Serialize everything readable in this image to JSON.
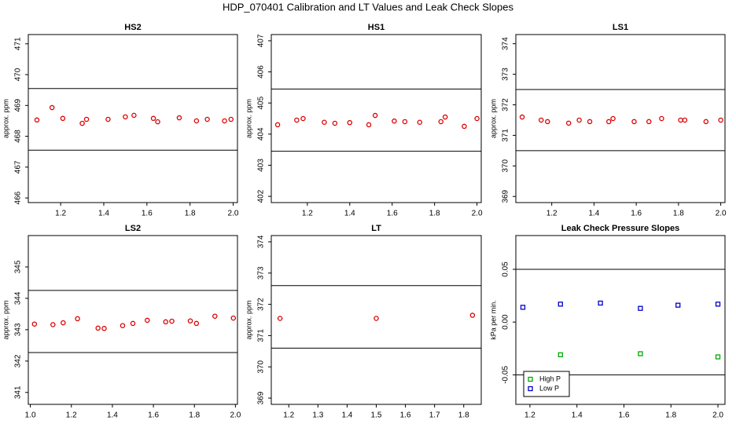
{
  "title": "HDP_070401  Calibration and LT Values and Leak Check Slopes",
  "chart_data": [
    {
      "type": "scatter",
      "title": "HS2",
      "ylabel": "approx. ppm",
      "xlim": [
        1.05,
        2.02
      ],
      "xticks": [
        1.2,
        1.4,
        1.6,
        1.8,
        {
          "value": 2,
          "label": "2.0"
        }
      ],
      "ylim": [
        465.85,
        471.3
      ],
      "yticks": [
        466,
        467,
        468,
        469,
        470,
        471
      ],
      "hlines": [
        469.55,
        467.55
      ],
      "series": [
        {
          "color": "#dd0000",
          "marker": "circle",
          "x": [
            1.09,
            1.16,
            1.21,
            1.3,
            1.32,
            1.42,
            1.5,
            1.54,
            1.63,
            1.65,
            1.75,
            1.83,
            1.88,
            1.96,
            1.99
          ],
          "values": [
            468.53,
            468.93,
            468.58,
            468.42,
            468.55,
            468.55,
            468.63,
            468.68,
            468.58,
            468.47,
            468.6,
            468.5,
            468.55,
            468.5,
            468.55
          ]
        }
      ]
    },
    {
      "type": "scatter",
      "title": "HS1",
      "ylabel": "approx. ppm",
      "xlim": [
        1.03,
        2.02
      ],
      "xticks": [
        1.2,
        1.4,
        1.6,
        1.8,
        {
          "value": 2,
          "label": "2.0"
        }
      ],
      "ylim": [
        401.8,
        407.2
      ],
      "yticks": [
        402,
        403,
        404,
        405,
        406,
        407
      ],
      "hlines": [
        405.45,
        403.45
      ],
      "series": [
        {
          "color": "#dd0000",
          "marker": "circle",
          "x": [
            1.06,
            1.15,
            1.18,
            1.28,
            1.33,
            1.4,
            1.49,
            1.52,
            1.61,
            1.66,
            1.73,
            1.83,
            1.85,
            1.94,
            2.0
          ],
          "values": [
            404.3,
            404.45,
            404.5,
            404.38,
            404.35,
            404.37,
            404.3,
            404.6,
            404.42,
            404.4,
            404.38,
            404.4,
            404.55,
            404.25,
            404.5
          ]
        }
      ]
    },
    {
      "type": "scatter",
      "title": "LS1",
      "ylabel": "approx. ppm",
      "xlim": [
        1.03,
        2.02
      ],
      "xticks": [
        1.2,
        1.4,
        1.6,
        1.8,
        {
          "value": 2,
          "label": "2.0"
        }
      ],
      "ylim": [
        368.8,
        374.3
      ],
      "yticks": [
        369,
        370,
        371,
        372,
        373,
        374
      ],
      "hlines": [
        372.5,
        370.5
      ],
      "series": [
        {
          "color": "#dd0000",
          "marker": "circle",
          "x": [
            1.06,
            1.15,
            1.18,
            1.28,
            1.33,
            1.38,
            1.47,
            1.49,
            1.59,
            1.66,
            1.72,
            1.81,
            1.83,
            1.93,
            2.0
          ],
          "values": [
            371.6,
            371.5,
            371.45,
            371.4,
            371.5,
            371.45,
            371.45,
            371.55,
            371.45,
            371.45,
            371.55,
            371.5,
            371.5,
            371.45,
            371.5
          ]
        }
      ]
    },
    {
      "type": "scatter",
      "title": "LS2",
      "ylabel": "approx. ppm",
      "xlim": [
        0.99,
        2.01
      ],
      "xticks": [
        {
          "value": 1,
          "label": "1.0"
        },
        1.2,
        1.4,
        1.6,
        1.8,
        {
          "value": 2,
          "label": "2.0"
        }
      ],
      "ylim": [
        340.62,
        346
      ],
      "yticks": [
        341,
        342,
        343,
        344,
        345
      ],
      "hlines": [
        344.25,
        342.27
      ],
      "series": [
        {
          "color": "#dd0000",
          "marker": "circle",
          "x": [
            1.02,
            1.11,
            1.16,
            1.23,
            1.33,
            1.36,
            1.45,
            1.5,
            1.57,
            1.66,
            1.69,
            1.78,
            1.81,
            1.9,
            1.99
          ],
          "values": [
            343.18,
            343.16,
            343.22,
            343.35,
            343.05,
            343.04,
            343.13,
            343.2,
            343.3,
            343.25,
            343.27,
            343.28,
            343.2,
            343.43,
            343.37
          ]
        }
      ]
    },
    {
      "type": "scatter",
      "title": "LT",
      "ylabel": "approx. ppm",
      "xlim": [
        1.14,
        1.86
      ],
      "xticks": [
        1.2,
        1.3,
        1.4,
        1.5,
        1.6,
        1.7,
        1.8
      ],
      "ylim": [
        368.8,
        374.2
      ],
      "yticks": [
        369,
        370,
        371,
        372,
        373,
        374
      ],
      "hlines": [
        372.6,
        370.6
      ],
      "series": [
        {
          "color": "#dd0000",
          "marker": "circle",
          "x": [
            1.17,
            1.5,
            1.83
          ],
          "values": [
            371.55,
            371.55,
            371.65
          ]
        }
      ]
    },
    {
      "type": "scatter",
      "title": "Leak Check Pressure Slopes",
      "ylabel": "kPa per min.",
      "xlim": [
        1.14,
        2.03
      ],
      "xticks": [
        1.2,
        1.4,
        1.6,
        1.8,
        {
          "value": 2,
          "label": "2.0"
        }
      ],
      "ylim": [
        -0.078,
        0.082
      ],
      "yticks": [
        -0.05,
        {
          "value": 0,
          "label": "0.00"
        },
        0.05
      ],
      "hlines": [
        0.05,
        -0.05
      ],
      "legend": "bottomleft",
      "series": [
        {
          "name": "High P",
          "color": "#00aa00",
          "marker": "square",
          "x": [
            1.33,
            1.67,
            2.0
          ],
          "values": [
            -0.031,
            -0.03,
            -0.033
          ]
        },
        {
          "name": "Low P",
          "color": "#0000cc",
          "marker": "square",
          "x": [
            1.17,
            1.33,
            1.5,
            1.67,
            1.83,
            2.0
          ],
          "values": [
            0.014,
            0.017,
            0.018,
            0.013,
            0.016,
            0.017
          ]
        }
      ]
    }
  ]
}
